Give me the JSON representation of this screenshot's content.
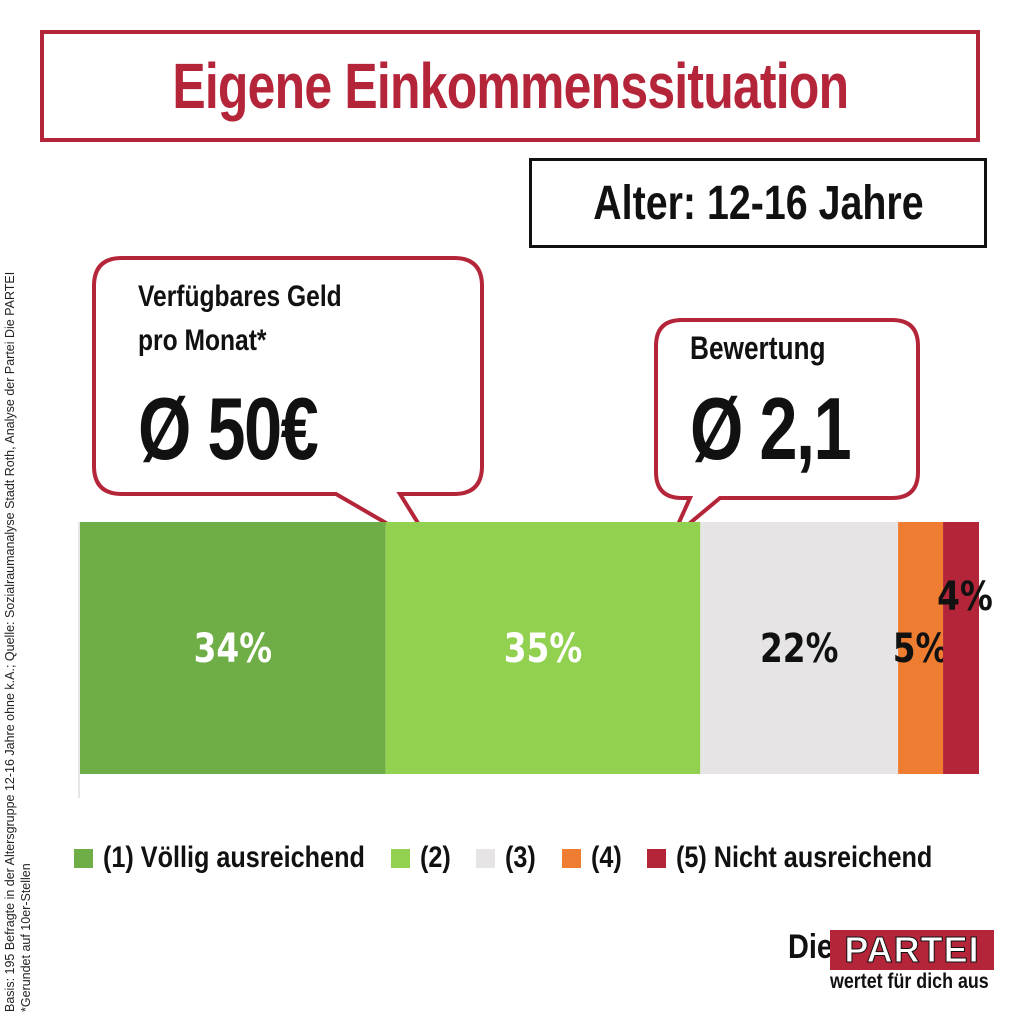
{
  "title": "Eigene Einkommenssituation",
  "subtitle": "Alter: 12-16 Jahre",
  "side_note": {
    "line1": "Basis: 195 Befragte in der Altersgruppe  12-16 Jahre ohne k.A.; Quelle: Sozialraumanalyse  Stadt Roth, Analyse der Partei Die PARTEI",
    "line2": "*Gerundet auf 10er-Stellen"
  },
  "callouts": {
    "money": {
      "label_line1": "Verfügbares Geld",
      "label_line2": "pro Monat*",
      "value": "Ø 50€"
    },
    "rating": {
      "label": "Bewertung",
      "value": "Ø 2,1"
    }
  },
  "chart_data": {
    "type": "bar",
    "orientation": "horizontal-stacked-100",
    "categories": [
      "(1) Völlig ausreichend",
      "(2)",
      "(3)",
      "(4)",
      "(5) Nicht ausreichend"
    ],
    "values": [
      34,
      35,
      22,
      5,
      4
    ],
    "labels": [
      "34%",
      "35%",
      "22%",
      "5%",
      "4%"
    ],
    "colors": [
      "#6fae46",
      "#92d050",
      "#e6e4e5",
      "#ee7d31",
      "#b5253a"
    ],
    "label_colors": [
      "#ffffff",
      "#ffffff",
      "#111111",
      "#111111",
      "#111111"
    ],
    "xlim": [
      0,
      100
    ],
    "legend_position": "bottom"
  },
  "logo": {
    "die": "Die",
    "partei": "PARTEI",
    "tagline": "wertet für dich aus"
  }
}
